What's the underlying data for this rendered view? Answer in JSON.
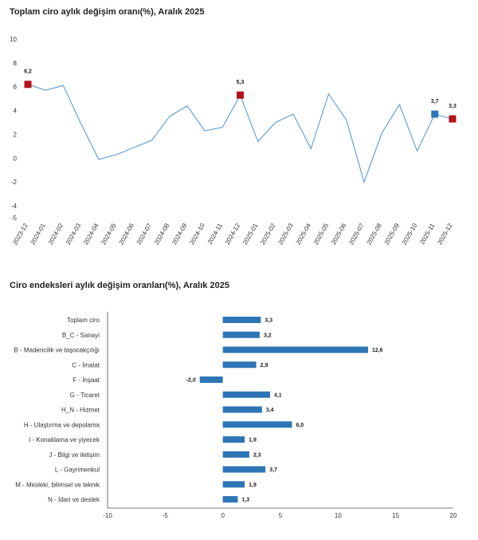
{
  "chart_data": [
    {
      "type": "line",
      "title": "Toplam ciro aylık değişim oranı(%), Aralık 2025",
      "x": [
        "2023-12",
        "2024-01",
        "2024-02",
        "2024-03",
        "2024-04",
        "2024-05",
        "2024-06",
        "2024-07",
        "2024-08",
        "2024-09",
        "2024-10",
        "2024-11",
        "2024-12",
        "2025-01",
        "2025-02",
        "2025-03",
        "2025-04",
        "2025-05",
        "2025-06",
        "2025-07",
        "2025-08",
        "2025-09",
        "2025-10",
        "2025-11",
        "2025-12"
      ],
      "values": [
        6.2,
        5.7,
        6.1,
        2.9,
        -0.1,
        0.3,
        0.9,
        1.5,
        3.5,
        4.4,
        2.3,
        2.6,
        5.3,
        1.4,
        3.0,
        3.7,
        0.8,
        5.4,
        3.2,
        -2.0,
        2.1,
        4.5,
        0.6,
        3.7,
        3.3
      ],
      "ylim": [
        -5,
        10
      ],
      "yticks": [
        10,
        8,
        6,
        4,
        2,
        0,
        -2,
        -4,
        -5
      ],
      "yticklabels": [
        "10",
        "8",
        "6",
        "4",
        "2",
        "0",
        "-2",
        "-4",
        "-5"
      ],
      "highlights": [
        {
          "index": 0,
          "label": "6,2",
          "color": "#b5121b"
        },
        {
          "index": 12,
          "label": "5,3",
          "color": "#b5121b"
        },
        {
          "index": 23,
          "label": "3,7",
          "color": "#2e75b6"
        },
        {
          "index": 24,
          "label": "3,3",
          "color": "#b5121b"
        }
      ],
      "line_color": "#5b9bd5"
    },
    {
      "type": "bar",
      "orientation": "horizontal",
      "title": "Ciro endeksleri aylık değişim oranları(%), Aralık 2025",
      "categories": [
        "Toplam ciro",
        "B_C - Sanayi",
        "B - Madencilik ve taşocakçılığı",
        "C - İmalat",
        "F - İnşaat",
        "G - Ticaret",
        "H_N - Hizmet",
        "H - Ulaştırma ve depolama",
        "I - Konaklama ve yiyecek",
        "J - Bilgi ve iletişim",
        "L - Gayrimenkul",
        "M - Mesleki, bilimsel ve teknik",
        "N - İdari ve destek"
      ],
      "values": [
        3.3,
        3.2,
        12.6,
        2.9,
        -2.0,
        4.1,
        3.4,
        6.0,
        1.9,
        2.3,
        3.7,
        1.9,
        1.3
      ],
      "value_labels": [
        "3,3",
        "3,2",
        "12,6",
        "2,9",
        "-2,0",
        "4,1",
        "3,4",
        "6,0",
        "1,9",
        "2,3",
        "3,7",
        "1,9",
        "1,3"
      ],
      "xlim": [
        -10,
        20
      ],
      "xticks": [
        -10,
        -5,
        0,
        5,
        10,
        15,
        20
      ],
      "xticklabels": [
        "-10",
        "-5",
        "0",
        "5",
        "10",
        "15",
        "20"
      ],
      "bar_color": "#2e75b6"
    }
  ]
}
